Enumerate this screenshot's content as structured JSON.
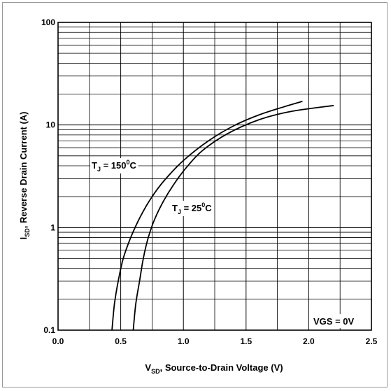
{
  "chart_data": {
    "type": "line",
    "title": "",
    "xlabel": {
      "main": "V",
      "sub": "SD",
      "rest": ", Source-to-Drain Voltage (V)"
    },
    "ylabel": {
      "main": "I",
      "sub": "SD",
      "rest": ", Reverse Drain Current (A)"
    },
    "xlim": [
      0.0,
      2.5
    ],
    "ylim": [
      0.1,
      100
    ],
    "y_scale": "log",
    "grid": true,
    "x_ticks": [
      0.0,
      0.5,
      1.0,
      1.5,
      2.0,
      2.5
    ],
    "x_tick_labels": [
      "0.0",
      "0.5",
      "1.0",
      "1.5",
      "2.0",
      "2.5"
    ],
    "y_ticks": [
      0.1,
      1,
      10,
      100
    ],
    "y_tick_labels": [
      "0.1",
      "1",
      "10",
      "100"
    ],
    "annotation": "VGS = 0V",
    "series": [
      {
        "name": "T_J = 150°C",
        "label": {
          "pre": "T",
          "sub": "J",
          "mid": " = 150",
          "sup": "0",
          "post": "C"
        },
        "x": [
          0.43,
          0.45,
          0.48,
          0.52,
          0.58,
          0.66,
          0.75,
          0.85,
          1.0,
          1.2,
          1.4,
          1.6,
          1.8,
          1.95
        ],
        "y": [
          0.1,
          0.18,
          0.3,
          0.5,
          0.8,
          1.3,
          2.0,
          2.9,
          4.5,
          7.0,
          9.8,
          12.5,
          15.0,
          17.0
        ]
      },
      {
        "name": "T_J = 25°C",
        "label": {
          "pre": "T",
          "sub": "J",
          "mid": " = 25",
          "sup": "0",
          "post": "C"
        },
        "x": [
          0.6,
          0.62,
          0.65,
          0.68,
          0.72,
          0.77,
          0.84,
          0.92,
          1.02,
          1.15,
          1.35,
          1.6,
          1.85,
          2.2
        ],
        "y": [
          0.1,
          0.18,
          0.3,
          0.5,
          0.8,
          1.2,
          1.8,
          2.6,
          3.8,
          5.6,
          8.2,
          11.2,
          13.5,
          15.5
        ]
      }
    ]
  }
}
